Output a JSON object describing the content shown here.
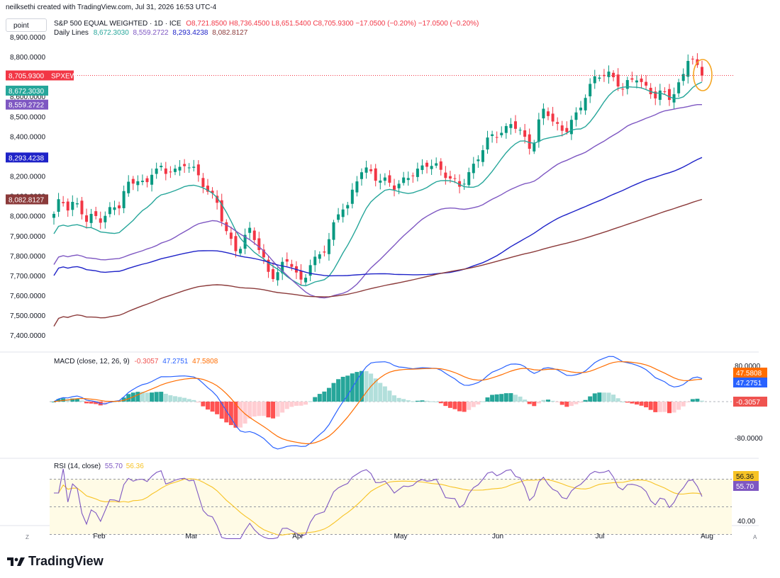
{
  "header": {
    "credit": "neilksethi created with TradingView.com, Jul 31, 2026 16:53 UTC-4",
    "symbol_title": "S&P 500 EQUAL WEIGHTED · 1D · ICE",
    "ohlc": "O8,721.8500 H8,736.4500 L8,651.5400 C8,705.9300 −17.0500 (−0.20%) −17.0500 (−0.20%)",
    "daily_lines_label": "Daily Lines",
    "daily_lines_values": [
      "8,672.3030",
      "8,559.2722",
      "8,293.4238",
      "8,082.8127"
    ],
    "daily_lines_colors": [
      "#26a69a",
      "#7e57c2",
      "#1e22c8",
      "#8b3a3a"
    ],
    "toolbar_point": "point"
  },
  "price_axis": {
    "ticks": [
      "8,900.0000",
      "8,800.0000",
      "8,700.0000",
      "8,600.0000",
      "8,500.0000",
      "8,400.0000",
      "8,300.0000",
      "8,200.0000",
      "8,100.0000",
      "8,000.0000",
      "7,900.0000",
      "7,800.0000",
      "7,700.0000",
      "7,600.0000",
      "7,500.0000",
      "7,400.0000"
    ],
    "last_price": "8,705.9300",
    "symbol_tag": "SPXEW",
    "badges": [
      {
        "text": "8,672.3030",
        "color": "#26a69a",
        "value": 8672.303
      },
      {
        "text": "8,559.2722",
        "color": "#7e57c2",
        "value": 8559.2722
      },
      {
        "text": "8,293.4238",
        "color": "#1e22c8",
        "value": 8293.4238
      },
      {
        "text": "8,082.8127",
        "color": "#8b3a3a",
        "value": 8082.8127
      }
    ]
  },
  "macd": {
    "label": "MACD (close, 12, 26, 9)",
    "values": [
      "-0.3057",
      "47.2751",
      "47.5808"
    ],
    "colors": [
      "#ef5350",
      "#2962ff",
      "#ff6d00"
    ],
    "axis_ticks": [
      "80.0000",
      "-80.0000"
    ],
    "badges": [
      {
        "text": "47.5808",
        "color": "#ff6d00"
      },
      {
        "text": "47.2751",
        "color": "#2962ff"
      },
      {
        "text": "-0.3057",
        "color": "#ef5350"
      }
    ]
  },
  "rsi": {
    "label": "RSI (14, close)",
    "values": [
      "55.70",
      "56.36"
    ],
    "colors": [
      "#7e57c2",
      "#f7c325"
    ],
    "axis_ticks": [
      "40.00"
    ],
    "badges": [
      {
        "text": "56.36",
        "color": "#f7c325",
        "text_color": "#131722"
      },
      {
        "text": "55.70",
        "color": "#7e57c2",
        "text_color": "#ffffff"
      }
    ]
  },
  "time_axis": [
    "Feb",
    "Mar",
    "Apr",
    "May",
    "Jun",
    "Jul",
    "Aug"
  ],
  "corners": {
    "left": "Z",
    "right": "A"
  },
  "footer": {
    "brand": "TradingView"
  },
  "chart_data": {
    "type": "candlestick",
    "title": "S&P 500 EQUAL WEIGHTED · 1D · ICE",
    "ylim": [
      7350,
      8920
    ],
    "close_sequence": [
      8010,
      8080,
      8030,
      8060,
      8040,
      7990,
      8010,
      7980,
      8000,
      8030,
      8050,
      8150,
      8180,
      8200,
      8140,
      8220,
      8240,
      8200,
      8250,
      8230,
      8270,
      8260,
      8190,
      8140,
      8100,
      8060,
      7960,
      7880,
      7820,
      7880,
      7920,
      7860,
      7780,
      7700,
      7720,
      7760,
      7780,
      7700,
      7640,
      7760,
      7790,
      7820,
      7890,
      7970,
      8040,
      8040,
      8160,
      8240,
      8240,
      8200,
      8180,
      8160,
      8140,
      8160,
      8200,
      8230,
      8240,
      8260,
      8250,
      8220,
      8200,
      8180,
      8160,
      8200,
      8240,
      8300,
      8360,
      8400,
      8420,
      8440,
      8480,
      8440,
      8370,
      8320,
      8460,
      8550,
      8500,
      8450,
      8420,
      8470,
      8500,
      8590,
      8660,
      8720,
      8720,
      8710,
      8670,
      8620,
      8680,
      8700,
      8660,
      8640,
      8600,
      8620,
      8590,
      8610,
      8700,
      8820,
      8770,
      8706
    ],
    "moving_averages": [
      {
        "color": "#26a69a",
        "last": 8672.303
      },
      {
        "color": "#7e57c2",
        "last": 8559.2722
      },
      {
        "color": "#1e22c8",
        "last": 8293.4238
      },
      {
        "color": "#8b3a3a",
        "last": 8082.8127
      }
    ],
    "last_close": 8705.93,
    "xlabels": [
      "Feb",
      "Mar",
      "Apr",
      "May",
      "Jun",
      "Jul",
      "Aug"
    ]
  }
}
